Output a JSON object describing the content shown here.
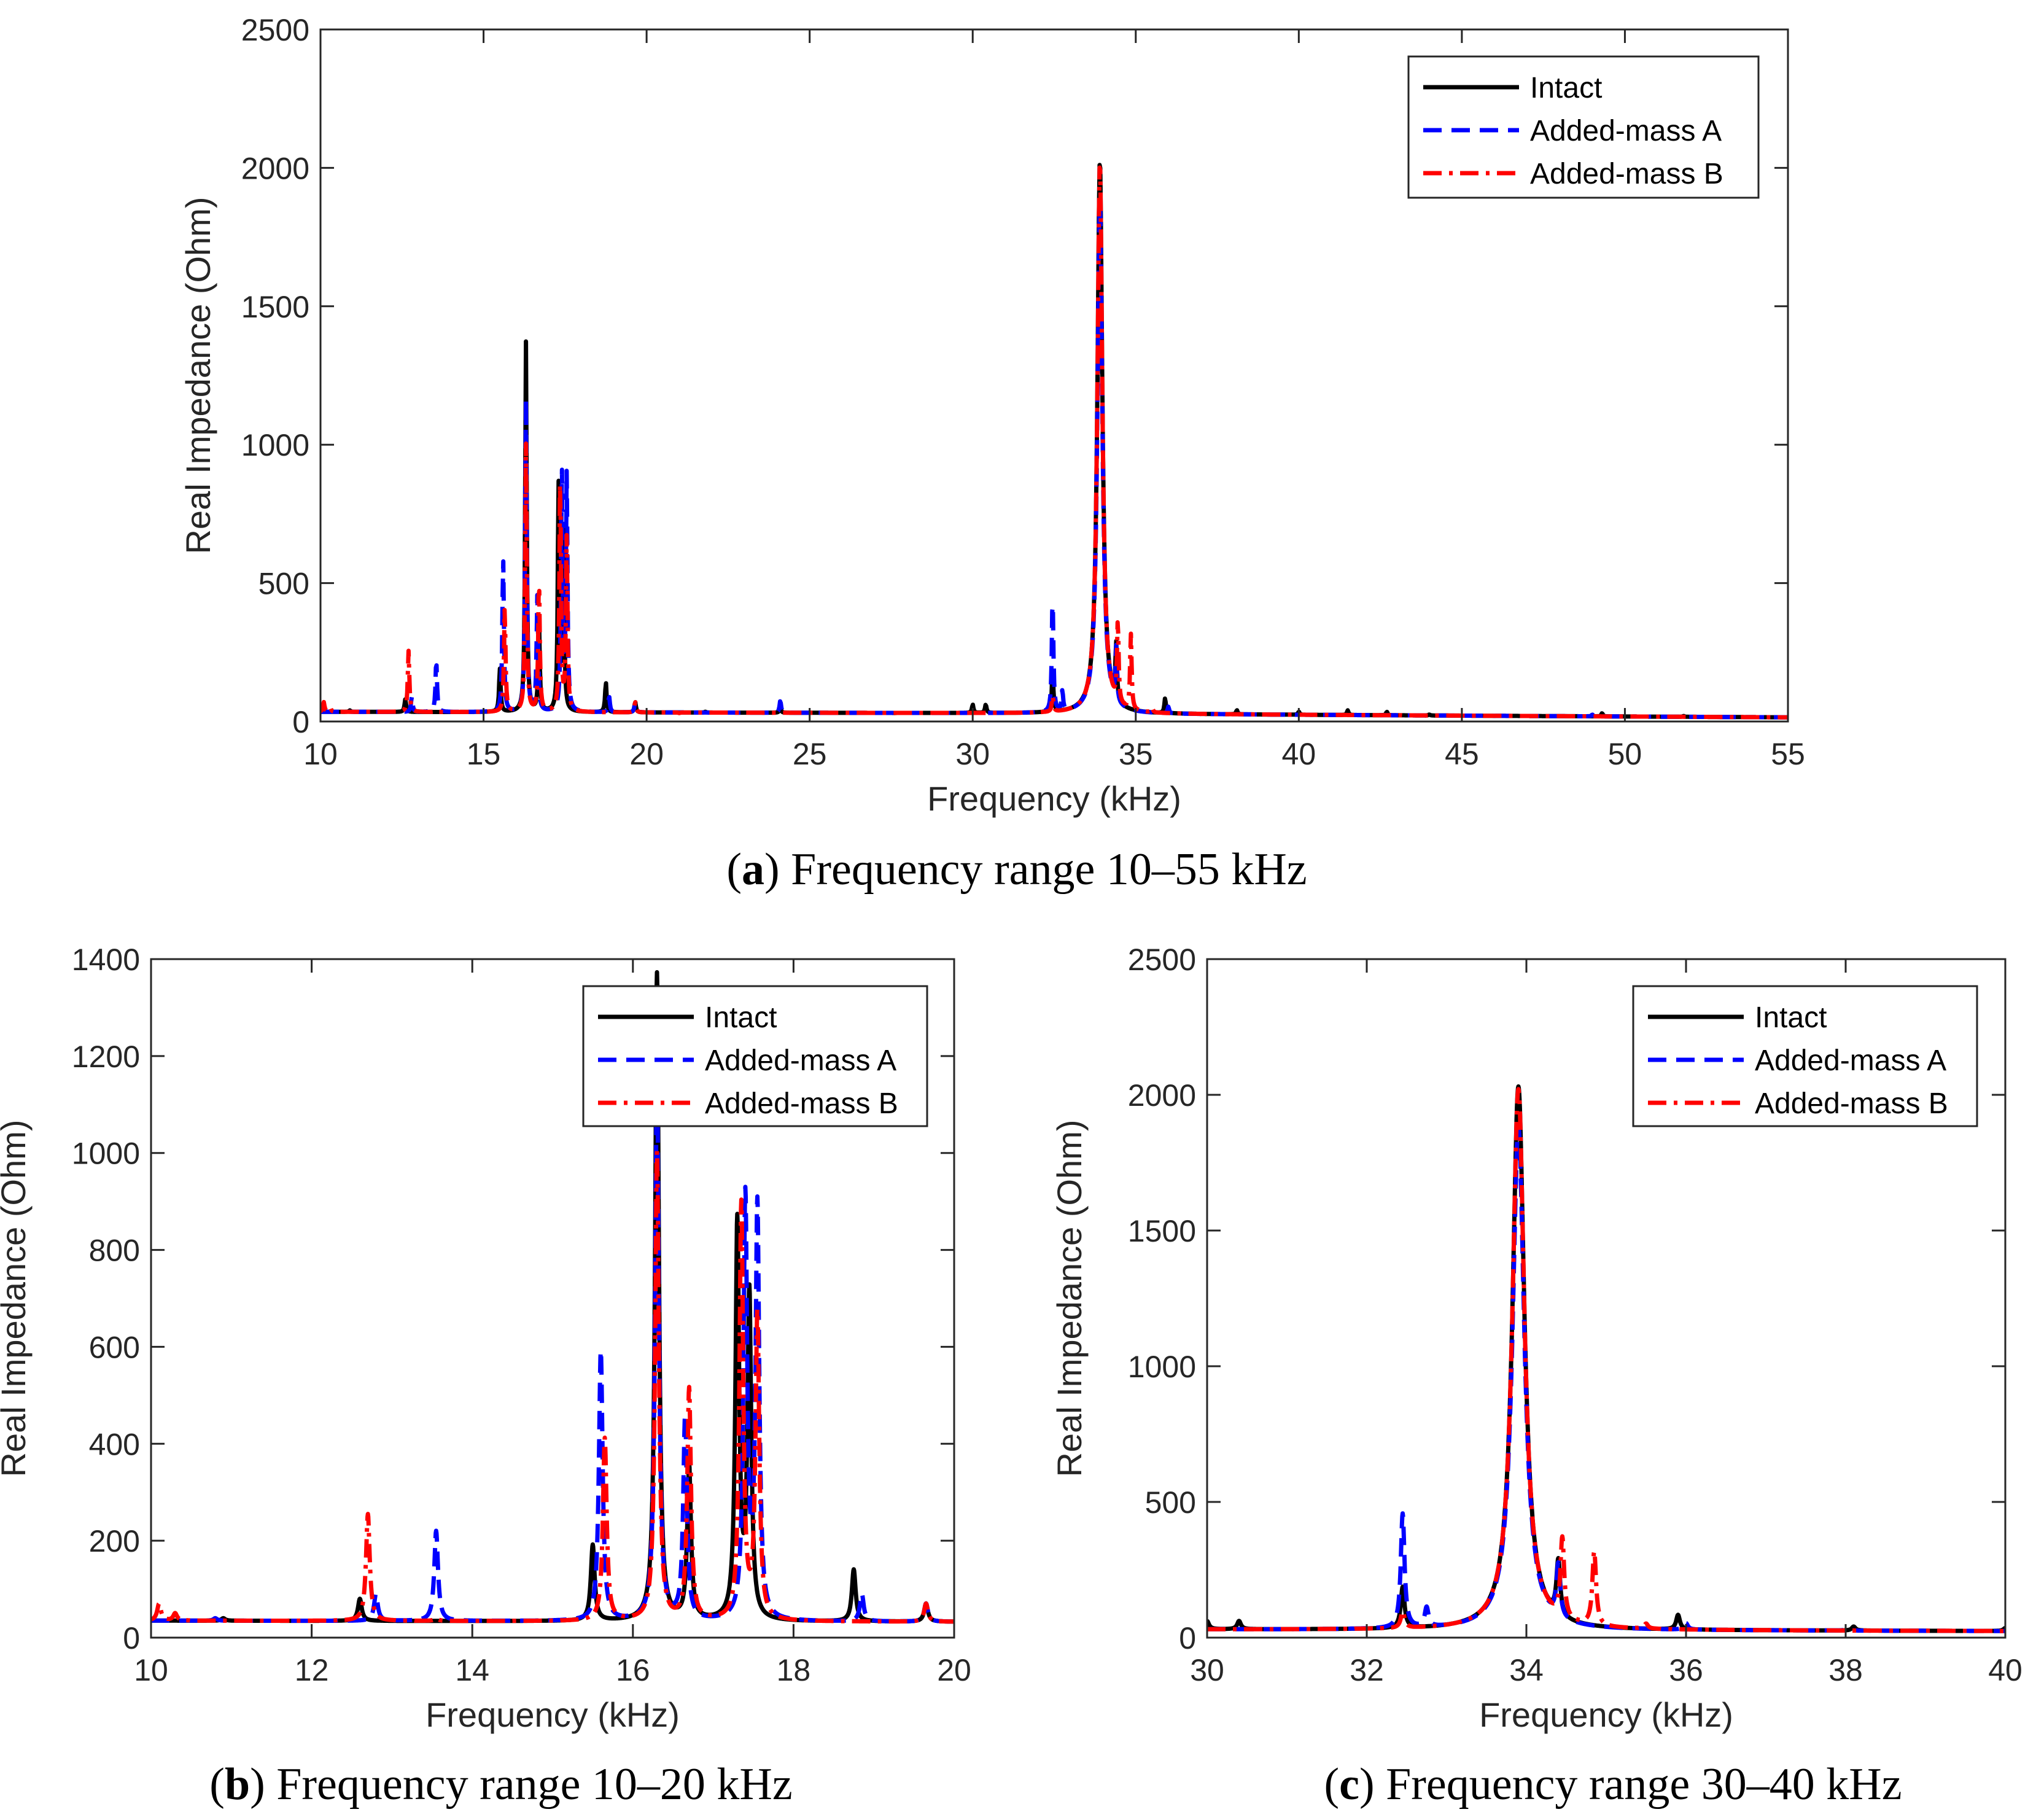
{
  "chart_data": [
    {
      "type": "line",
      "panel": "a",
      "caption": {
        "letter": "a",
        "text": "Frequency range 10–55 kHz"
      },
      "xlabel": "Frequency (kHz)",
      "ylabel": "Real Impedance (Ohm)",
      "xlim": [
        10,
        55
      ],
      "ylim": [
        0,
        2500
      ],
      "xticks": [
        10,
        15,
        20,
        25,
        30,
        35,
        40,
        45,
        50,
        55
      ],
      "yticks": [
        0,
        500,
        1000,
        1500,
        2000,
        2500
      ],
      "legend_position": "top-right",
      "series": [
        {
          "name": "Intact",
          "color": "#000000",
          "style": "solid",
          "peaks": [
            [
              10.9,
              40
            ],
            [
              12.6,
              80
            ],
            [
              15.5,
              190
            ],
            [
              16.3,
              1370
            ],
            [
              16.7,
              350
            ],
            [
              17.3,
              850
            ],
            [
              17.45,
              700
            ],
            [
              18.75,
              140
            ],
            [
              19.65,
              70
            ],
            [
              21.8,
              35
            ],
            [
              24.1,
              50
            ],
            [
              27.6,
              30
            ],
            [
              30.0,
              60
            ],
            [
              30.4,
              60
            ],
            [
              32.45,
              180
            ],
            [
              33.9,
              2030
            ],
            [
              34.4,
              230
            ],
            [
              35.9,
              80
            ],
            [
              38.1,
              40
            ],
            [
              40.0,
              35
            ],
            [
              41.5,
              40
            ],
            [
              42.7,
              35
            ],
            [
              44.0,
              25
            ],
            [
              46.0,
              20
            ],
            [
              49.3,
              30
            ],
            [
              51.8,
              20
            ]
          ],
          "base": [
            [
              10,
              35
            ],
            [
              30,
              30
            ],
            [
              55,
              15
            ]
          ]
        },
        {
          "name": "Added-mass A",
          "color": "#0000ff",
          "style": "dashed",
          "peaks": [
            [
              10.8,
              40
            ],
            [
              12.8,
              90
            ],
            [
              13.55,
              220
            ],
            [
              15.6,
              590
            ],
            [
              16.3,
              1160
            ],
            [
              16.65,
              450
            ],
            [
              17.4,
              900
            ],
            [
              17.55,
              880
            ],
            [
              18.85,
              90
            ],
            [
              19.65,
              70
            ],
            [
              24.1,
              75
            ],
            [
              32.45,
              450
            ],
            [
              32.75,
              100
            ],
            [
              33.9,
              1880
            ],
            [
              34.4,
              220
            ],
            [
              36.0,
              50
            ],
            [
              38.0,
              30
            ],
            [
              49.0,
              25
            ]
          ],
          "base": [
            [
              10,
              35
            ],
            [
              30,
              30
            ],
            [
              55,
              15
            ]
          ]
        },
        {
          "name": "Added-mass B",
          "color": "#ff0000",
          "style": "dashdot",
          "peaks": [
            [
              10.1,
              70
            ],
            [
              10.3,
              50
            ],
            [
              12.7,
              255
            ],
            [
              13.55,
              40
            ],
            [
              15.65,
              410
            ],
            [
              16.3,
              1000
            ],
            [
              16.7,
              510
            ],
            [
              17.35,
              890
            ],
            [
              17.55,
              660
            ],
            [
              19.65,
              70
            ],
            [
              21.0,
              30
            ],
            [
              32.45,
              90
            ],
            [
              33.9,
              2020
            ],
            [
              34.45,
              320
            ],
            [
              34.85,
              300
            ],
            [
              35.5,
              45
            ]
          ],
          "base": [
            [
              10,
              35
            ],
            [
              30,
              30
            ],
            [
              55,
              15
            ]
          ]
        }
      ]
    },
    {
      "type": "line",
      "panel": "b",
      "caption": {
        "letter": "b",
        "text": "Frequency range 10–20 kHz"
      },
      "xlabel": "Frequency (kHz)",
      "ylabel": "Real Impedance (Ohm)",
      "xlim": [
        10,
        20
      ],
      "ylim": [
        0,
        1400
      ],
      "xticks": [
        10,
        12,
        14,
        16,
        18,
        20
      ],
      "yticks": [
        0,
        200,
        400,
        600,
        800,
        1000,
        1200,
        1400
      ],
      "legend_position": "top-right",
      "series_ref": "same three series as panel a"
    },
    {
      "type": "line",
      "panel": "c",
      "caption": {
        "letter": "c",
        "text": "Frequency range 30–40 kHz"
      },
      "xlabel": "Frequency (kHz)",
      "ylabel": "Real Impedance (Ohm)",
      "xlim": [
        30,
        40
      ],
      "ylim": [
        0,
        2500
      ],
      "xticks": [
        30,
        32,
        34,
        36,
        38,
        40
      ],
      "yticks": [
        0,
        500,
        1000,
        1500,
        2000,
        2500
      ],
      "legend_position": "top-right",
      "series_ref": "same three series as panel a"
    }
  ]
}
